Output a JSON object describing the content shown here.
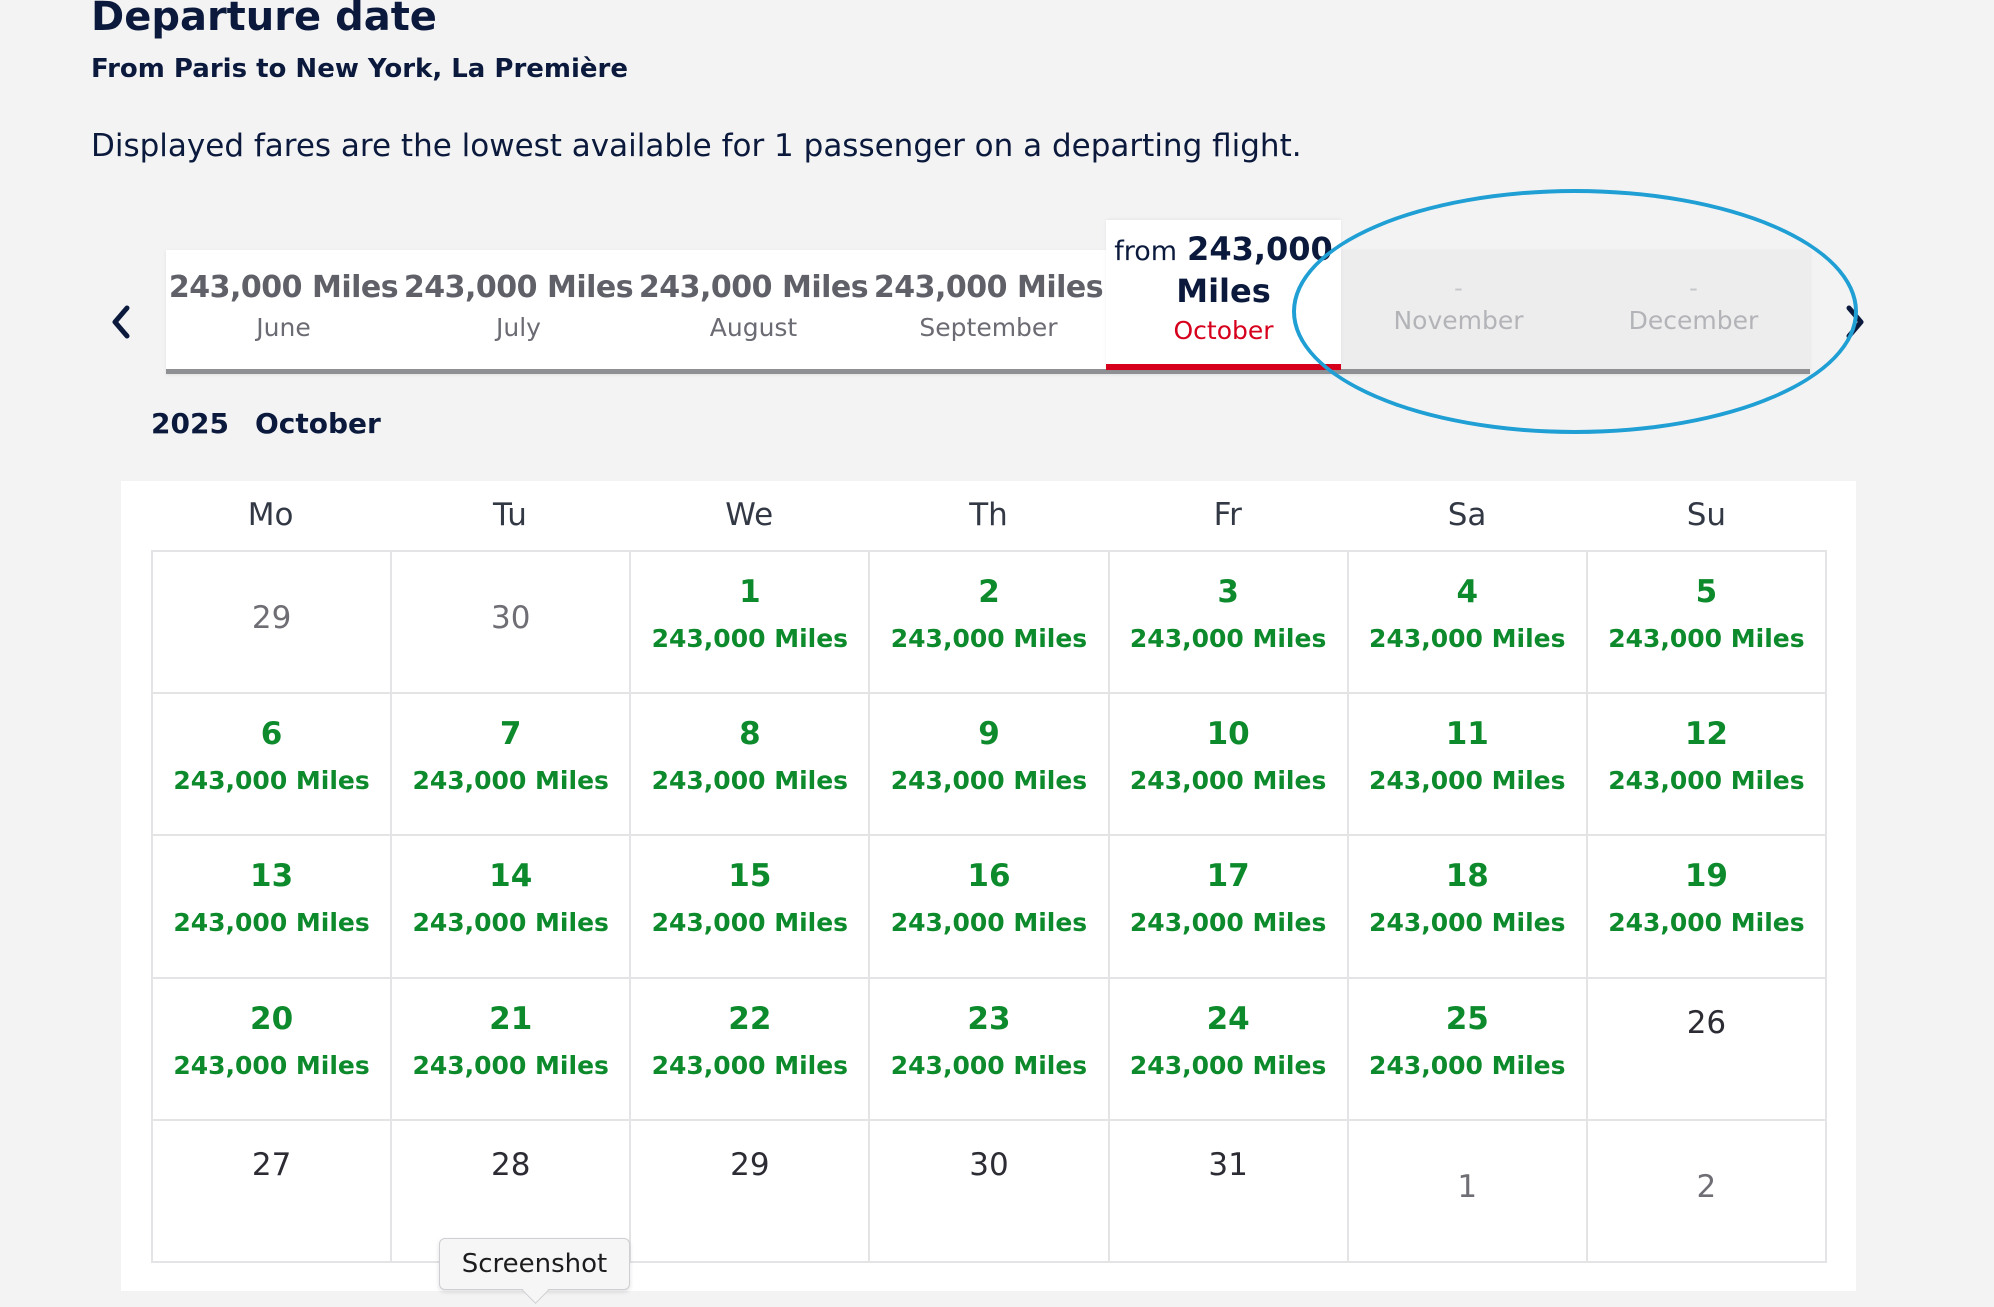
{
  "header": {
    "title": "Departure date",
    "route": "From Paris to New York, La Première",
    "note": "Displayed fares are the lowest available for 1 passenger on a departing flight."
  },
  "months": [
    {
      "label": "June",
      "miles": "243,000 Miles"
    },
    {
      "label": "July",
      "miles": "243,000 Miles"
    },
    {
      "label": "August",
      "miles": "243,000 Miles"
    },
    {
      "label": "September",
      "miles": "243,000 Miles"
    }
  ],
  "active_month": {
    "from": "from",
    "amount": "243,000",
    "unit": "Miles",
    "label": "October"
  },
  "disabled_months": [
    {
      "label": "November",
      "dash": "-"
    },
    {
      "label": "December",
      "dash": "-"
    }
  ],
  "calendar": {
    "year": "2025",
    "month": "October",
    "weekdays": [
      "Mo",
      "Tu",
      "We",
      "Th",
      "Fr",
      "Sa",
      "Su"
    ],
    "days": [
      {
        "d": "29",
        "t": "other"
      },
      {
        "d": "30",
        "t": "other_top"
      },
      {
        "d": "1",
        "p": "243,000 Miles"
      },
      {
        "d": "2",
        "p": "243,000 Miles"
      },
      {
        "d": "3",
        "p": "243,000 Miles"
      },
      {
        "d": "4",
        "p": "243,000 Miles"
      },
      {
        "d": "5",
        "p": "243,000 Miles"
      },
      {
        "d": "6",
        "p": "243,000 Miles"
      },
      {
        "d": "7",
        "p": "243,000 Miles"
      },
      {
        "d": "8",
        "p": "243,000 Miles"
      },
      {
        "d": "9",
        "p": "243,000 Miles"
      },
      {
        "d": "10",
        "p": "243,000 Miles"
      },
      {
        "d": "11",
        "p": "243,000 Miles"
      },
      {
        "d": "12",
        "p": "243,000 Miles"
      },
      {
        "d": "13",
        "p": "243,000 Miles"
      },
      {
        "d": "14",
        "p": "243,000 Miles"
      },
      {
        "d": "15",
        "p": "243,000 Miles"
      },
      {
        "d": "16",
        "p": "243,000 Miles"
      },
      {
        "d": "17",
        "p": "243,000 Miles"
      },
      {
        "d": "18",
        "p": "243,000 Miles"
      },
      {
        "d": "19",
        "p": "243,000 Miles"
      },
      {
        "d": "20",
        "p": "243,000 Miles"
      },
      {
        "d": "21",
        "p": "243,000 Miles"
      },
      {
        "d": "22",
        "p": "243,000 Miles"
      },
      {
        "d": "23",
        "p": "243,000 Miles"
      },
      {
        "d": "24",
        "p": "243,000 Miles"
      },
      {
        "d": "25",
        "p": "243,000 Miles"
      },
      {
        "d": "26",
        "t": "unavail"
      },
      {
        "d": "27",
        "t": "unavail"
      },
      {
        "d": "28",
        "t": "unavail"
      },
      {
        "d": "29",
        "t": "unavail"
      },
      {
        "d": "30",
        "t": "unavail"
      },
      {
        "d": "31",
        "t": "unavail"
      },
      {
        "d": "1",
        "t": "othernext"
      },
      {
        "d": "2",
        "t": "othernext"
      }
    ]
  },
  "tooltip": "Screenshot",
  "icons": {
    "prev": "chevron-left-icon",
    "next": "chevron-right-icon"
  },
  "colors": {
    "available": "#0d8a2b",
    "active_accent": "#d6001c",
    "annotation": "#1f9fd4"
  }
}
